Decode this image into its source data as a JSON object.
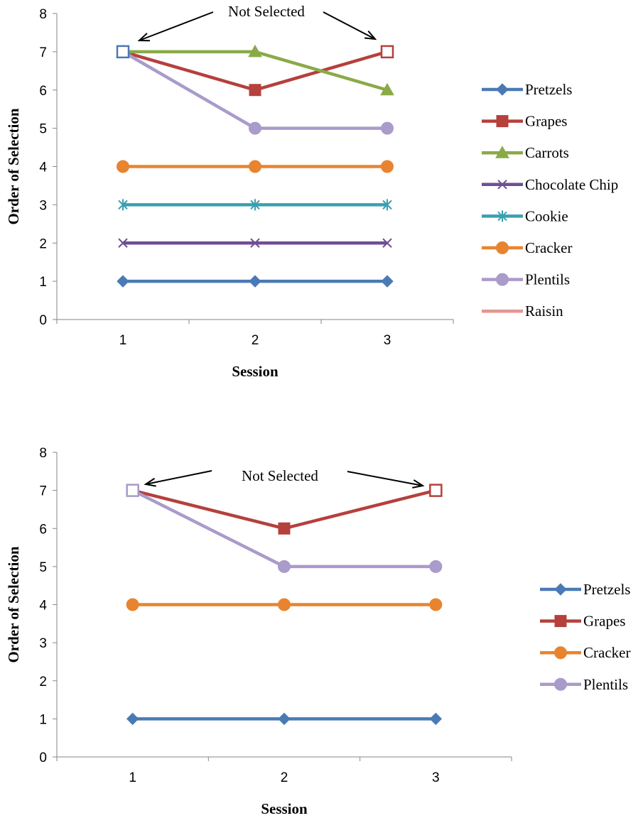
{
  "chart_data": [
    {
      "type": "line",
      "xlabel": "Session",
      "ylabel": "Order of Selection",
      "x": [
        1,
        2,
        3
      ],
      "ylim": [
        0,
        8
      ],
      "yticks": [
        0,
        1,
        2,
        3,
        4,
        5,
        6,
        7,
        8
      ],
      "grid": false,
      "legend_position": "right",
      "annotation": "Not Selected",
      "legend": [
        "Pretzels",
        "Grapes",
        "Carrots",
        "Chocolate Chip",
        "Cookie",
        "Cracker",
        "Plentils",
        "Raisin"
      ],
      "series": [
        {
          "key": "pretzels",
          "color": "#4a7ab5",
          "marker": "diamond",
          "values": [
            1,
            1,
            1
          ]
        },
        {
          "key": "grapes",
          "color": "#b5403c",
          "marker": "square",
          "values": [
            7,
            6,
            7
          ],
          "hollow": [
            false,
            false,
            true
          ]
        },
        {
          "key": "carrots",
          "color": "#8aaa48",
          "marker": "triangle",
          "values": [
            7,
            7,
            6
          ]
        },
        {
          "key": "chocolate-chip",
          "color": "#6f4f93",
          "marker": "x",
          "values": [
            2,
            2,
            2
          ]
        },
        {
          "key": "cookie",
          "color": "#3a9fb0",
          "marker": "asterisk",
          "values": [
            3,
            3,
            3
          ]
        },
        {
          "key": "cracker",
          "color": "#e8842f",
          "marker": "circle",
          "values": [
            4,
            4,
            4
          ]
        },
        {
          "key": "plentils",
          "color": "#a99bca",
          "marker": "circle",
          "values": [
            7,
            5,
            5
          ]
        },
        {
          "key": "raisin",
          "color": "#e59590",
          "marker": "none",
          "values": [
            null,
            null,
            null
          ]
        }
      ],
      "extra_markers": [
        {
          "x": 1,
          "y": 7,
          "color": "#4a7ab5",
          "marker": "square",
          "hollow": true
        }
      ]
    },
    {
      "type": "line",
      "xlabel": "Session",
      "ylabel": "Order of Selection",
      "x": [
        1,
        2,
        3
      ],
      "ylim": [
        0,
        8
      ],
      "yticks": [
        0,
        1,
        2,
        3,
        4,
        5,
        6,
        7,
        8
      ],
      "grid": false,
      "legend_position": "right",
      "annotation": "Not Selected",
      "legend": [
        "Pretzels",
        "Grapes",
        "Cracker",
        "Plentils"
      ],
      "series": [
        {
          "key": "pretzels",
          "color": "#4a7ab5",
          "marker": "diamond",
          "values": [
            1,
            1,
            1
          ]
        },
        {
          "key": "grapes",
          "color": "#b5403c",
          "marker": "square",
          "values": [
            7,
            6,
            7
          ],
          "hollow": [
            false,
            false,
            true
          ]
        },
        {
          "key": "cracker",
          "color": "#e8842f",
          "marker": "circle",
          "values": [
            4,
            4,
            4
          ]
        },
        {
          "key": "plentils",
          "color": "#a99bca",
          "marker": "circle",
          "values": [
            7,
            5,
            5
          ]
        }
      ],
      "extra_markers": [
        {
          "x": 1,
          "y": 7,
          "color": "#a99bca",
          "marker": "square",
          "hollow": true
        }
      ]
    }
  ]
}
